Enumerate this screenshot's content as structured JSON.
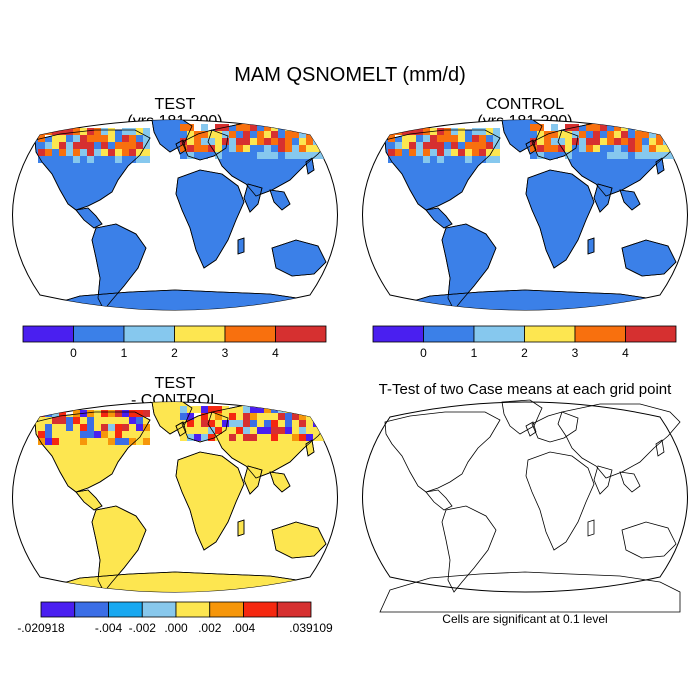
{
  "title": "MAM QSNOMELT (mm/d)",
  "panels": {
    "test": {
      "title": "TEST",
      "subtitle": "(yrs 181-200)"
    },
    "control": {
      "title": "CONTROL",
      "subtitle": "(yrs 181-200)"
    },
    "diff": {
      "title": "TEST",
      "subtitle": "- CONTROL"
    },
    "ttest": {
      "title": "T-Test of two Case means at each grid point",
      "note": "Cells are significant at 0.1 level"
    }
  },
  "colorbars": {
    "main": {
      "colors": [
        "#4a1ff0",
        "#3b80e8",
        "#86c8ee",
        "#fde650",
        "#f8700e",
        "#d63030"
      ],
      "labels": [
        "0",
        "1",
        "2",
        "3",
        "4"
      ]
    },
    "diff": {
      "colors": [
        "#4a1ff0",
        "#3b6ee6",
        "#18a8f0",
        "#88c8ec",
        "#fde650",
        "#f6960a",
        "#f52810",
        "#d63030"
      ],
      "labels": [
        "-.020918",
        "-.004",
        "-.002",
        ".000",
        ".002",
        ".004",
        ".039109"
      ]
    }
  },
  "colors": {
    "ocean": "#ffffff",
    "coast": "#000000",
    "land_main": "#3b80e8",
    "land_diff": "#fde650"
  }
}
